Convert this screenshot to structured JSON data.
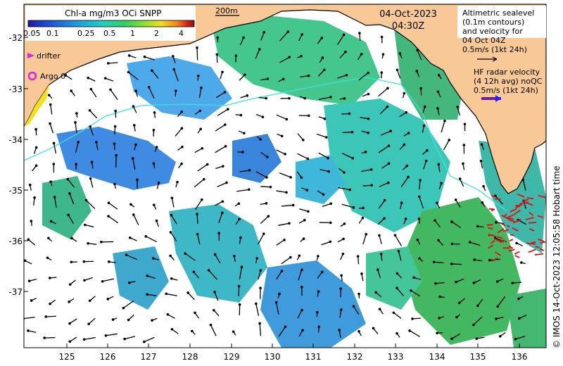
{
  "map": {
    "colorbar": {
      "title": "Chl-a mg/m3 OCi SNPP",
      "ticks": [
        "0.05",
        "0.1",
        "0.25",
        "0.5",
        "1",
        "2",
        "4"
      ],
      "colors": [
        "#1a1aa0",
        "#1f4fd6",
        "#1f9ee0",
        "#1fd0c0",
        "#2fd060",
        "#90e030",
        "#f0e020",
        "#f08020",
        "#d02010",
        "#901010"
      ]
    },
    "scale_bar_label": "200m",
    "date": "04-Oct-2023",
    "time": "04:30Z",
    "altimetry_legend": "Altimetric sealevel\n(0.1m contours)\nand velocity for\n04 Oct 04Z\n0.5m/s (1kt 24h)",
    "hf_radar_legend": "HF radar velocity\n(4 12h avg) noQC\n0.5m/s (1kt 24h)",
    "drifter_label": "drifter",
    "argo_label": "Argo 0",
    "credit": "© IMOS 14-Oct-2023 12:05:58 Hobart time",
    "lat_ticks": [
      "-32",
      "-33",
      "-34",
      "-35",
      "-36",
      "-37"
    ],
    "lon_ticks": [
      "125",
      "126",
      "127",
      "128",
      "129",
      "130",
      "131",
      "132",
      "133",
      "134",
      "135",
      "136"
    ],
    "colors": {
      "land": "#f8c896",
      "coast": "#000000",
      "shelf_contour": "#40e0e0",
      "hf_arrows": "#e01010",
      "hf_legend_arrow": "#2020f0",
      "drifter": "#e020e0"
    }
  }
}
